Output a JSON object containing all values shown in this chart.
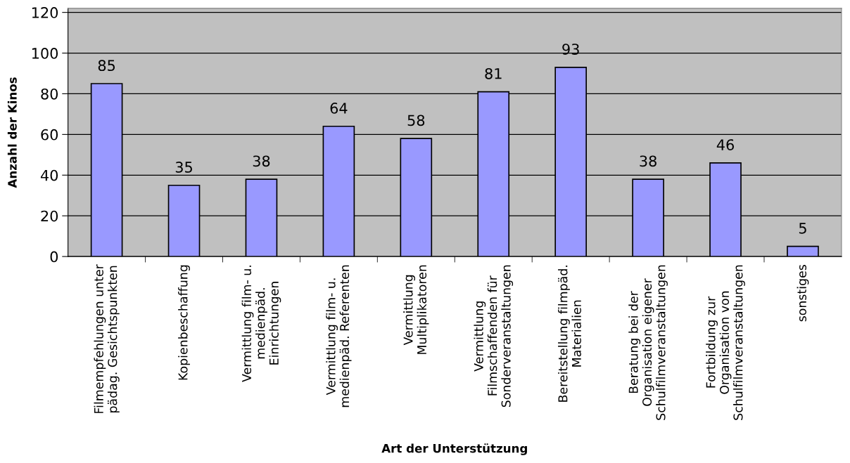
{
  "chart_data": {
    "type": "bar",
    "xlabel": "Art der Unterstützung",
    "ylabel": "Anzahl der Kinos",
    "categories": [
      "Filmempfehlungen unter\npädag. Gesichtspunkten",
      "Kopienbeschaffung",
      "Vermittlung film- u.\nmedienpäd.\nEinrichtungen",
      "Vermittlung film- u.\nmedienpäd. Referenten",
      "Vermittlung\nMultiplikatoren",
      "Vermittlung\nFilmschaffenden für\nSonderveranstaltungen",
      "Bereitstellung filmpäd.\nMaterialien",
      "Beratung bei der\nOrganisation eigener\nSchulfilmveranstaltungen",
      "Fortbildung zur\nOrganisation von\nSchulfilmveranstaltungen",
      "sonstiges"
    ],
    "values": [
      85,
      35,
      38,
      64,
      58,
      81,
      93,
      38,
      46,
      5
    ],
    "color": "#9999ff",
    "ylim": [
      0,
      122
    ],
    "yticks": [
      0,
      20,
      40,
      60,
      80,
      100,
      120
    ],
    "grid": "y",
    "data_labels": true,
    "legend": false
  }
}
